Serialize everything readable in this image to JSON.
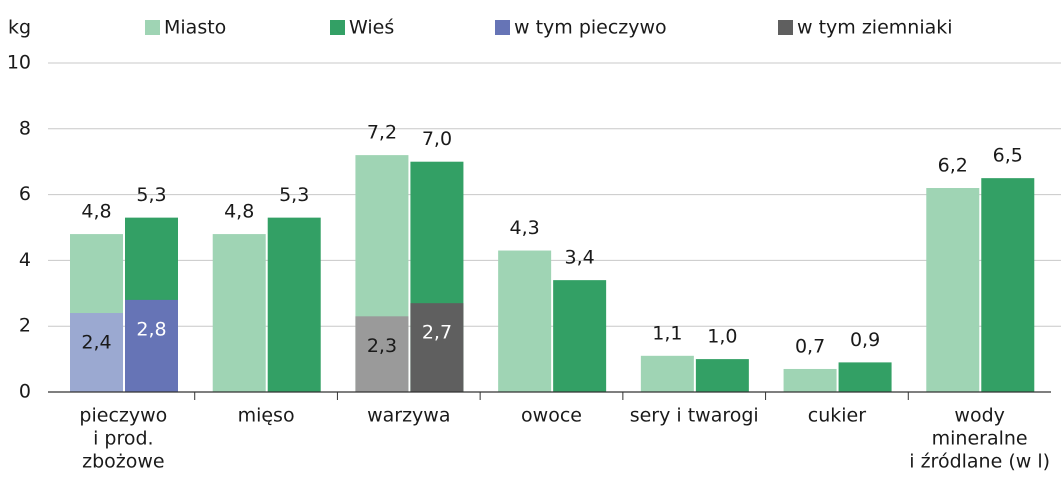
{
  "chart_data": {
    "type": "bar",
    "ylabel": "kg",
    "categories": [
      [
        "pieczywo",
        "i prod.",
        "zbożowe"
      ],
      [
        "mięso"
      ],
      [
        "warzywa"
      ],
      [
        "owoce"
      ],
      [
        "sery i twarogi"
      ],
      [
        "cukier"
      ],
      [
        "wody",
        "mineralne",
        "i źródlane (w l)"
      ]
    ],
    "series": [
      {
        "name": "Miasto",
        "color": "#9fd4b4",
        "values": [
          4.8,
          4.8,
          7.2,
          4.3,
          1.1,
          0.7,
          6.2
        ],
        "value_labels": [
          "4,8",
          "4,8",
          "7,2",
          "4,3",
          "1,1",
          "0,7",
          "6,2"
        ]
      },
      {
        "name": "Wieś",
        "color": "#33a065",
        "values": [
          5.3,
          5.3,
          7.0,
          3.4,
          1.0,
          0.9,
          6.5
        ],
        "value_labels": [
          "5,3",
          "5,3",
          "7,0",
          "3,4",
          "1,0",
          "0,9",
          "6,5"
        ]
      },
      {
        "name": "w tym pieczywo",
        "colors": [
          "#9ba9d1",
          "#6674b6"
        ],
        "values": [
          [
            2.4,
            2.8
          ],
          null,
          null,
          null,
          null,
          null,
          null
        ],
        "value_labels": [
          [
            "2,4",
            "2,8"
          ],
          null,
          null,
          null,
          null,
          null,
          null
        ]
      },
      {
        "name": "w tym ziemniaki",
        "colors": [
          "#9a9a9a",
          "#5f5f5f"
        ],
        "values": [
          null,
          null,
          [
            2.3,
            2.7
          ],
          null,
          null,
          null,
          null
        ],
        "value_labels": [
          null,
          null,
          [
            "2,3",
            "2,7"
          ],
          null,
          null,
          null,
          null
        ]
      }
    ],
    "ylim": [
      0,
      10
    ],
    "yticks": [
      0,
      2,
      4,
      6,
      8,
      10
    ],
    "grid": true
  }
}
